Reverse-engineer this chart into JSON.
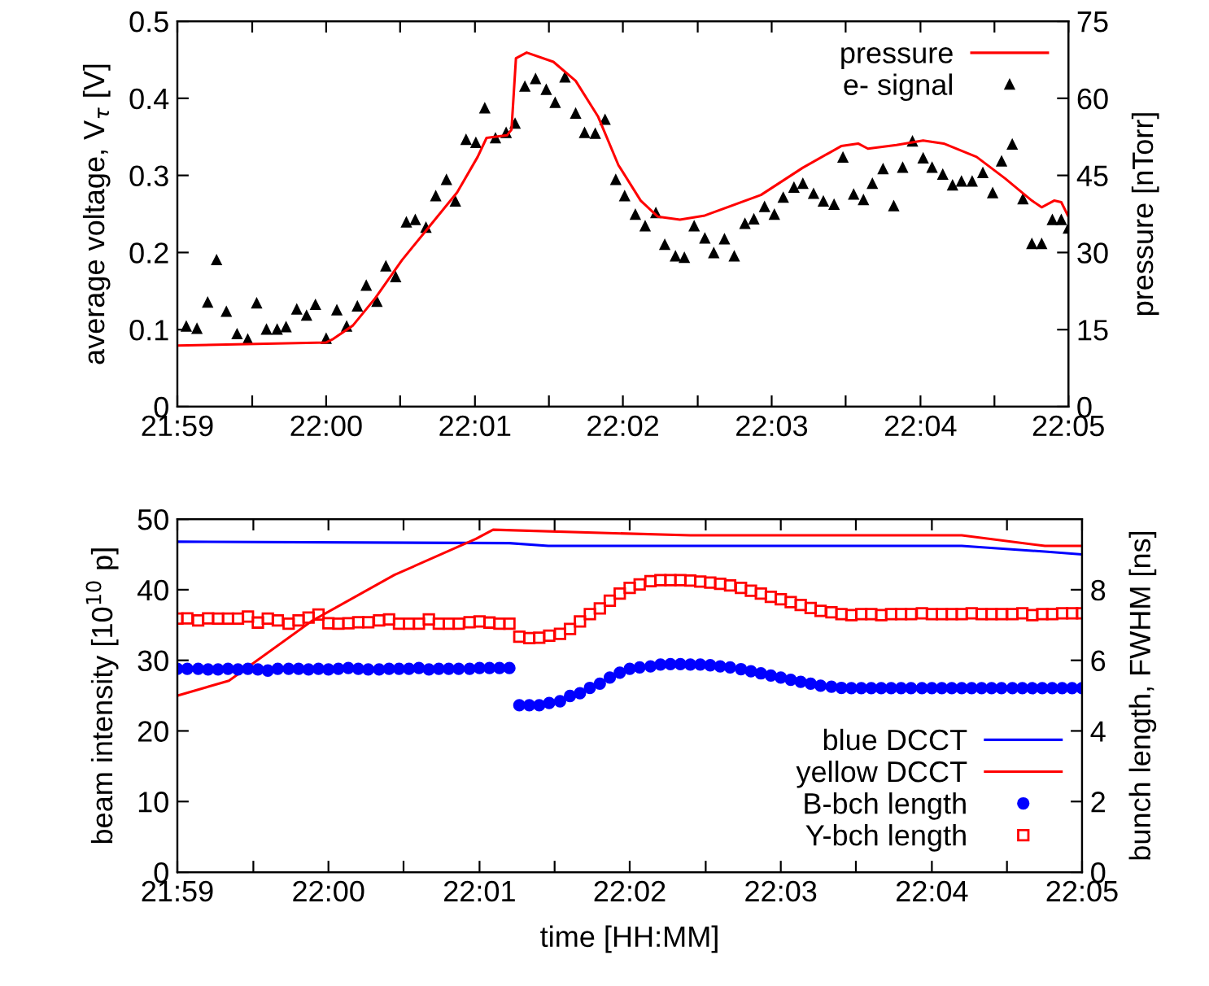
{
  "chart_data": [
    {
      "type": "line",
      "xlim": [
        21.9833,
        22.0833
      ],
      "xticks": [
        {
          "value": 21.9833,
          "label": "21:59"
        },
        {
          "value": 21.9917,
          "label": null
        },
        {
          "value": 22.0,
          "label": "22:00"
        },
        {
          "value": 22.0083,
          "label": null
        },
        {
          "value": 22.0167,
          "label": "22:01"
        },
        {
          "value": 22.025,
          "label": null
        },
        {
          "value": 22.0333,
          "label": "22:02"
        },
        {
          "value": 22.0417,
          "label": null
        },
        {
          "value": 22.05,
          "label": "22:03"
        },
        {
          "value": 22.0583,
          "label": null
        },
        {
          "value": 22.0667,
          "label": "22:04"
        },
        {
          "value": 22.075,
          "label": null
        },
        {
          "value": 22.0833,
          "label": "22:05"
        }
      ],
      "ylim": [
        0,
        0.5
      ],
      "yticks": [
        0,
        0.1,
        0.2,
        0.3,
        0.4,
        0.5
      ],
      "y2lim": [
        0,
        75
      ],
      "y2ticks": [
        0,
        15,
        30,
        45,
        60,
        75
      ],
      "ylabel": "average voltage, V$_{τ}$ [V]",
      "y2label": "pressure [nTorr]",
      "legend": "top right",
      "grid": false,
      "series": [
        {
          "name": "pressure",
          "axis": "y2",
          "color": "#ff0000",
          "marker": "none",
          "line_style": "solid",
          "x": [
            21.9833,
            22.0,
            22.0008,
            22.003,
            22.0055,
            22.0085,
            22.0115,
            22.0147,
            22.017,
            22.018,
            22.0203,
            22.0208,
            22.0213,
            22.0225,
            22.0255,
            22.028,
            22.0305,
            22.0328,
            22.0353,
            22.0372,
            22.0397,
            22.0425,
            22.0488,
            22.0535,
            22.0578,
            22.0597,
            22.0608,
            22.064,
            22.067,
            22.0693,
            22.073,
            22.0762,
            22.0792,
            22.0803,
            22.0817,
            22.0825,
            22.0833
          ],
          "values": [
            11.9,
            12.5,
            13.2,
            15.8,
            21.1,
            28.5,
            34.9,
            41.7,
            48.6,
            52.3,
            52.8,
            53.9,
            67.8,
            68.9,
            67.1,
            63.4,
            56.5,
            47.0,
            40.1,
            37.0,
            36.4,
            37.2,
            41.2,
            46.5,
            50.7,
            51.2,
            50.2,
            50.9,
            51.8,
            51.2,
            48.6,
            44.4,
            40.1,
            38.8,
            40.1,
            39.8,
            37.0
          ]
        },
        {
          "name": "e- signal",
          "type": "scatter",
          "color": "#000000",
          "marker": "triangle",
          "x": [
            21.9843,
            21.9855,
            21.9867,
            21.9877,
            21.9888,
            21.99,
            21.9912,
            21.9922,
            21.9933,
            21.9945,
            21.9955,
            21.9967,
            21.9978,
            21.9988,
            22.0,
            22.0012,
            22.0023,
            22.0035,
            22.0045,
            22.0057,
            22.0067,
            22.0078,
            22.009,
            22.01,
            22.0112,
            22.0123,
            22.0135,
            22.0145,
            22.0157,
            22.0168,
            22.0178,
            22.019,
            22.0202,
            22.0212,
            22.0223,
            22.0235,
            22.0247,
            22.0257,
            22.0268,
            22.028,
            22.029,
            22.0302,
            22.0313,
            22.0325,
            22.0335,
            22.0347,
            22.0358,
            22.037,
            22.038,
            22.0392,
            22.0402,
            22.0413,
            22.0425,
            22.0435,
            22.0447,
            22.0458,
            22.047,
            22.048,
            22.0492,
            22.0503,
            22.0513,
            22.0525,
            22.0535,
            22.0547,
            22.0558,
            22.057,
            22.058,
            22.0592,
            22.0603,
            22.0613,
            22.0625,
            22.0637,
            22.0647,
            22.0658,
            22.067,
            22.068,
            22.0692,
            22.0703,
            22.0713,
            22.0725,
            22.0737,
            22.0748,
            22.0758,
            22.077,
            22.0782,
            22.0792,
            22.0803,
            22.0815,
            22.0825,
            22.0833
          ],
          "values": [
            0.104,
            0.101,
            0.135,
            0.19,
            0.123,
            0.094,
            0.087,
            0.134,
            0.1,
            0.1,
            0.103,
            0.126,
            0.118,
            0.132,
            0.088,
            0.125,
            0.104,
            0.13,
            0.157,
            0.136,
            0.182,
            0.168,
            0.239,
            0.242,
            0.232,
            0.273,
            0.294,
            0.266,
            0.346,
            0.342,
            0.387,
            0.348,
            0.355,
            0.367,
            0.415,
            0.425,
            0.411,
            0.394,
            0.427,
            0.38,
            0.355,
            0.354,
            0.372,
            0.294,
            0.273,
            0.249,
            0.234,
            0.251,
            0.21,
            0.195,
            0.193,
            0.234,
            0.218,
            0.199,
            0.217,
            0.195,
            0.237,
            0.243,
            0.259,
            0.249,
            0.271,
            0.284,
            0.289,
            0.276,
            0.266,
            0.262,
            0.323,
            0.275,
            0.268,
            0.289,
            0.308,
            0.26,
            0.31,
            0.344,
            0.322,
            0.31,
            0.301,
            0.287,
            0.292,
            0.292,
            0.303,
            0.277,
            0.318,
            0.34,
            0.269,
            0.211,
            0.211,
            0.242,
            0.242,
            0.231
          ]
        }
      ]
    },
    {
      "type": "line",
      "xlim": [
        21.9833,
        22.0833
      ],
      "xticks": [
        {
          "value": 21.9833,
          "label": "21:59"
        },
        {
          "value": 21.9917,
          "label": null
        },
        {
          "value": 22.0,
          "label": "22:00"
        },
        {
          "value": 22.0083,
          "label": null
        },
        {
          "value": 22.0167,
          "label": "22:01"
        },
        {
          "value": 22.025,
          "label": null
        },
        {
          "value": 22.0333,
          "label": "22:02"
        },
        {
          "value": 22.0417,
          "label": null
        },
        {
          "value": 22.05,
          "label": "22:03"
        },
        {
          "value": 22.0583,
          "label": null
        },
        {
          "value": 22.0667,
          "label": "22:04"
        },
        {
          "value": 22.075,
          "label": null
        },
        {
          "value": 22.0833,
          "label": "22:05"
        }
      ],
      "ylim": [
        0,
        50
      ],
      "yticks": [
        0,
        10,
        20,
        30,
        40,
        50
      ],
      "y2lim": [
        0,
        10
      ],
      "y2ticks": [
        0,
        2,
        4,
        6,
        8
      ],
      "xlabel": "time [HH:MM]",
      "ylabel": "beam intensity [10$^{10}$ p]",
      "y2label": "bunch length, FWHM [ns]",
      "legend": "bottom right",
      "grid": false,
      "series": [
        {
          "name": "blue DCCT",
          "color": "#0000ff",
          "marker": "none",
          "line_style": "solid",
          "x": [
            21.9833,
            22.02,
            22.0243,
            22.07,
            22.0792,
            22.0833
          ],
          "values": [
            46.8,
            46.6,
            46.2,
            46.2,
            45.4,
            45.0
          ]
        },
        {
          "name": "yellow DCCT",
          "color": "#ff0000",
          "marker": "none",
          "line_style": "solid",
          "x": [
            21.9833,
            21.989,
            21.9982,
            22.0073,
            22.0163,
            22.0182,
            22.04,
            22.07,
            22.0792,
            22.0833
          ],
          "values": [
            25.0,
            27.1,
            35.6,
            42.1,
            47.2,
            48.5,
            47.7,
            47.7,
            46.2,
            46.2
          ]
        },
        {
          "name": "B-bch length",
          "type": "scatter",
          "axis": "y2",
          "color": "#0000ff",
          "marker": "circle",
          "x": [
            21.9833,
            21.9844,
            21.9856,
            21.9867,
            21.9878,
            21.9889,
            21.99,
            21.9911,
            21.9922,
            21.9933,
            21.9944,
            21.9956,
            21.9967,
            21.9978,
            21.9989,
            22.0,
            22.0011,
            22.0022,
            22.0033,
            22.0044,
            22.0056,
            22.0067,
            22.0078,
            22.0089,
            22.01,
            22.0111,
            22.0122,
            22.0133,
            22.0144,
            22.0156,
            22.0167,
            22.0178,
            22.0189,
            22.02,
            22.0211,
            22.0222,
            22.0233,
            22.0244,
            22.0256,
            22.0267,
            22.0278,
            22.0289,
            22.03,
            22.0311,
            22.0322,
            22.0333,
            22.0344,
            22.0356,
            22.0367,
            22.0378,
            22.0389,
            22.04,
            22.0411,
            22.0422,
            22.0433,
            22.0444,
            22.0456,
            22.0467,
            22.0478,
            22.0489,
            22.05,
            22.0511,
            22.0522,
            22.0533,
            22.0544,
            22.0556,
            22.0567,
            22.0578,
            22.0589,
            22.06,
            22.0611,
            22.0622,
            22.0633,
            22.0644,
            22.0656,
            22.0667,
            22.0678,
            22.0689,
            22.07,
            22.0711,
            22.0722,
            22.0733,
            22.0744,
            22.0756,
            22.0767,
            22.0778,
            22.0789,
            22.08,
            22.0811,
            22.0822,
            22.0833
          ],
          "values": [
            5.76,
            5.76,
            5.76,
            5.74,
            5.74,
            5.76,
            5.74,
            5.76,
            5.74,
            5.71,
            5.76,
            5.76,
            5.76,
            5.74,
            5.76,
            5.74,
            5.76,
            5.78,
            5.76,
            5.74,
            5.74,
            5.76,
            5.76,
            5.76,
            5.78,
            5.74,
            5.76,
            5.76,
            5.76,
            5.76,
            5.78,
            5.78,
            5.78,
            5.78,
            4.73,
            4.73,
            4.73,
            4.79,
            4.84,
            4.99,
            5.07,
            5.22,
            5.34,
            5.51,
            5.65,
            5.76,
            5.8,
            5.83,
            5.88,
            5.89,
            5.89,
            5.88,
            5.88,
            5.86,
            5.83,
            5.8,
            5.75,
            5.69,
            5.63,
            5.57,
            5.51,
            5.45,
            5.39,
            5.34,
            5.28,
            5.25,
            5.22,
            5.21,
            5.21,
            5.21,
            5.21,
            5.21,
            5.21,
            5.21,
            5.21,
            5.21,
            5.21,
            5.21,
            5.21,
            5.21,
            5.21,
            5.21,
            5.21,
            5.21,
            5.21,
            5.21,
            5.21,
            5.21,
            5.21,
            5.21,
            5.21
          ]
        },
        {
          "name": "Y-bch length",
          "type": "scatter",
          "axis": "y2",
          "color": "#ff0000",
          "marker": "square",
          "x": [
            21.9833,
            21.9844,
            21.9856,
            21.9867,
            21.9878,
            21.9889,
            21.99,
            21.9911,
            21.9922,
            21.9933,
            21.9944,
            21.9956,
            21.9967,
            21.9978,
            21.9989,
            22.0,
            22.0011,
            22.0022,
            22.0033,
            22.0044,
            22.0056,
            22.0067,
            22.0078,
            22.0089,
            22.01,
            22.0111,
            22.0122,
            22.0133,
            22.0144,
            22.0156,
            22.0167,
            22.0178,
            22.0189,
            22.02,
            22.0211,
            22.0222,
            22.0233,
            22.0244,
            22.0256,
            22.0267,
            22.0278,
            22.0289,
            22.03,
            22.0311,
            22.0322,
            22.0333,
            22.0344,
            22.0356,
            22.0367,
            22.0378,
            22.0389,
            22.04,
            22.0411,
            22.0422,
            22.0433,
            22.0444,
            22.0456,
            22.0467,
            22.0478,
            22.0489,
            22.05,
            22.0511,
            22.0522,
            22.0533,
            22.0544,
            22.0556,
            22.0567,
            22.0578,
            22.0589,
            22.06,
            22.0611,
            22.0622,
            22.0633,
            22.0644,
            22.0656,
            22.0667,
            22.0678,
            22.0689,
            22.07,
            22.0711,
            22.0722,
            22.0733,
            22.0744,
            22.0756,
            22.0767,
            22.0778,
            22.0789,
            22.08,
            22.0811,
            22.0822,
            22.0833
          ],
          "values": [
            7.18,
            7.19,
            7.13,
            7.19,
            7.18,
            7.18,
            7.18,
            7.24,
            7.07,
            7.18,
            7.13,
            7.04,
            7.13,
            7.21,
            7.3,
            7.05,
            7.04,
            7.05,
            7.08,
            7.08,
            7.13,
            7.16,
            7.04,
            7.04,
            7.04,
            7.16,
            7.04,
            7.04,
            7.04,
            7.08,
            7.1,
            7.07,
            7.04,
            7.04,
            6.67,
            6.63,
            6.64,
            6.7,
            6.75,
            6.89,
            7.1,
            7.31,
            7.47,
            7.69,
            7.89,
            8.05,
            8.15,
            8.24,
            8.27,
            8.27,
            8.27,
            8.26,
            8.23,
            8.2,
            8.17,
            8.12,
            8.05,
            7.97,
            7.89,
            7.8,
            7.73,
            7.65,
            7.57,
            7.48,
            7.4,
            7.36,
            7.31,
            7.28,
            7.31,
            7.31,
            7.28,
            7.31,
            7.31,
            7.31,
            7.33,
            7.31,
            7.31,
            7.31,
            7.31,
            7.33,
            7.31,
            7.31,
            7.31,
            7.31,
            7.33,
            7.28,
            7.31,
            7.31,
            7.33,
            7.33,
            7.33
          ]
        }
      ]
    }
  ]
}
